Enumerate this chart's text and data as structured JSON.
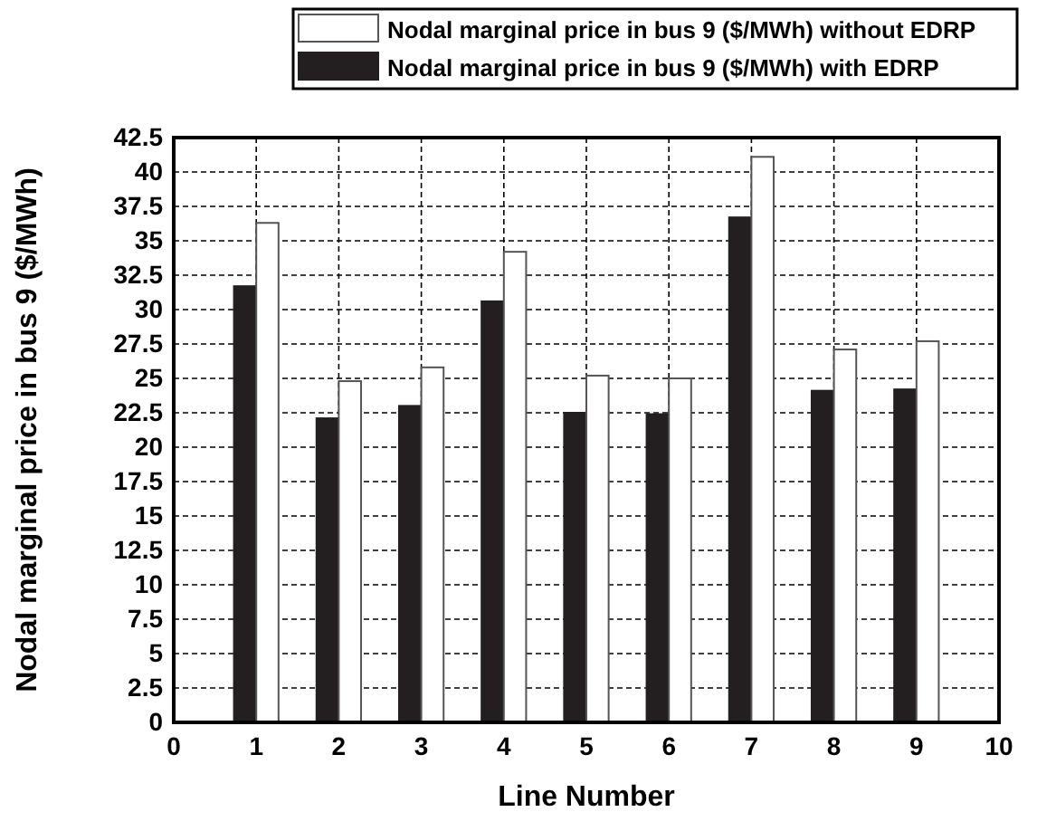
{
  "chart_data": {
    "type": "bar",
    "xlabel": "Line Number",
    "ylabel": "Nodal marginal price in bus 9 ($/MWh)",
    "x": [
      1,
      2,
      3,
      4,
      5,
      6,
      7,
      8,
      9
    ],
    "series": [
      {
        "name": "Nodal marginal price in bus 9 ($/MWh) with EDRP",
        "color": "#231f20",
        "values": [
          31.7,
          22.1,
          23.0,
          30.6,
          22.5,
          22.4,
          36.7,
          24.1,
          24.2
        ]
      },
      {
        "name": "Nodal marginal price in bus 9 ($/MWh) without EDRP",
        "color": "#ffffff",
        "values": [
          36.3,
          24.8,
          25.8,
          34.2,
          25.2,
          25.0,
          41.1,
          27.1,
          27.7
        ]
      }
    ],
    "xlim": [
      0,
      10
    ],
    "xticks": [
      0,
      1,
      2,
      3,
      4,
      5,
      6,
      7,
      8,
      9,
      10
    ],
    "ylim": [
      0,
      42.5
    ],
    "yticks": [
      0,
      2.5,
      5,
      7.5,
      10,
      12.5,
      15,
      17.5,
      20,
      22.5,
      25,
      27.5,
      30,
      32.5,
      35,
      37.5,
      40,
      42.5
    ],
    "grid": true,
    "legend": "top"
  }
}
